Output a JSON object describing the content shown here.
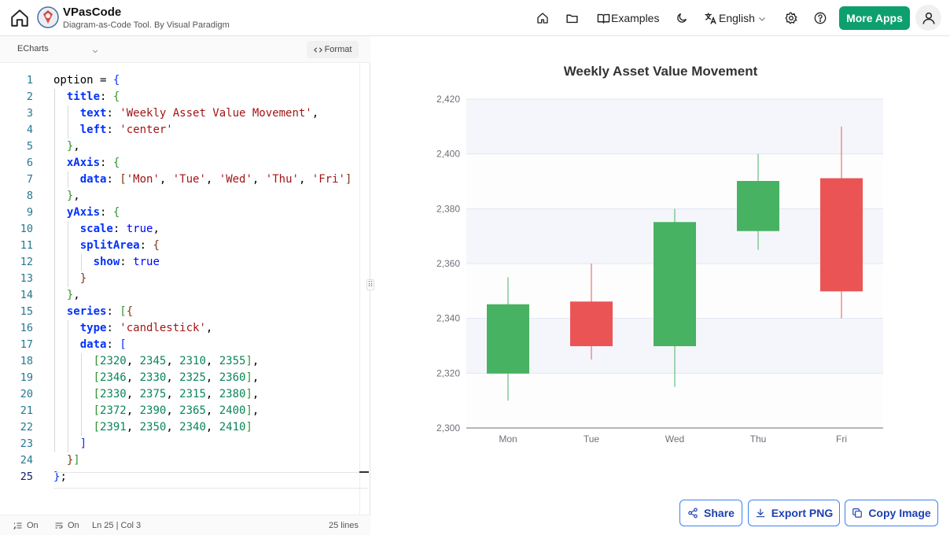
{
  "header": {
    "app_title": "VPasCode",
    "app_subtitle": "Diagram-as-Code Tool. By Visual Paradigm",
    "examples_label": "Examples",
    "language_label": "English",
    "more_apps_label": "More Apps",
    "icons": [
      "home-icon",
      "logo-icon",
      "house-icon",
      "folder-icon",
      "book-icon",
      "moon-icon",
      "translate-icon",
      "chevron-down-icon",
      "gear-icon",
      "help-icon",
      "user-icon"
    ]
  },
  "editor": {
    "language": "ECharts",
    "format_label": "Format",
    "lines": [
      "1",
      "2",
      "3",
      "4",
      "5",
      "6",
      "7",
      "8",
      "9",
      "10",
      "11",
      "12",
      "13",
      "14",
      "15",
      "16",
      "17",
      "18",
      "19",
      "20",
      "21",
      "22",
      "23",
      "24",
      "25"
    ],
    "code": {
      "l1": "option",
      "l3_text_val": "'Weekly Asset Value Movement'",
      "l4_left_val": "'center'",
      "l7_data": [
        "'Mon'",
        "'Tue'",
        "'Wed'",
        "'Thu'",
        "'Fri'"
      ],
      "l10_scale": "true",
      "l12_show": "true",
      "l16_type": "'candlestick'",
      "rows": [
        [
          "2320",
          "2345",
          "2310",
          "2355"
        ],
        [
          "2346",
          "2330",
          "2325",
          "2360"
        ],
        [
          "2330",
          "2375",
          "2315",
          "2380"
        ],
        [
          "2372",
          "2390",
          "2365",
          "2400"
        ],
        [
          "2391",
          "2350",
          "2340",
          "2410"
        ]
      ]
    },
    "status": {
      "wrap": "On",
      "minimap": "On",
      "position": "Ln 25 | Col 3",
      "lines_count": "25 lines"
    }
  },
  "actions": {
    "share": "Share",
    "export_png": "Export PNG",
    "copy_image": "Copy Image"
  },
  "colors": {
    "up": "#47b262",
    "down": "#eb5454",
    "accent": "#0e9f6e",
    "button_border": "#3b82f6"
  },
  "chart_data": {
    "type": "candlestick",
    "title": "Weekly Asset Value Movement",
    "categories": [
      "Mon",
      "Tue",
      "Wed",
      "Thu",
      "Fri"
    ],
    "series": [
      {
        "values": [
          [
            2320,
            2345,
            2310,
            2355
          ],
          [
            2346,
            2330,
            2325,
            2360
          ],
          [
            2330,
            2375,
            2315,
            2380
          ],
          [
            2372,
            2390,
            2365,
            2400
          ],
          [
            2391,
            2350,
            2340,
            2410
          ]
        ]
      }
    ],
    "value_order": [
      "open",
      "close",
      "lowest",
      "highest"
    ],
    "ylim": [
      2300,
      2420
    ],
    "yticks": [
      2300,
      2320,
      2340,
      2360,
      2380,
      2400,
      2420
    ],
    "ytick_labels": [
      "2,300",
      "2,320",
      "2,340",
      "2,360",
      "2,380",
      "2,400",
      "2,420"
    ],
    "split_area": true,
    "grid": true
  }
}
